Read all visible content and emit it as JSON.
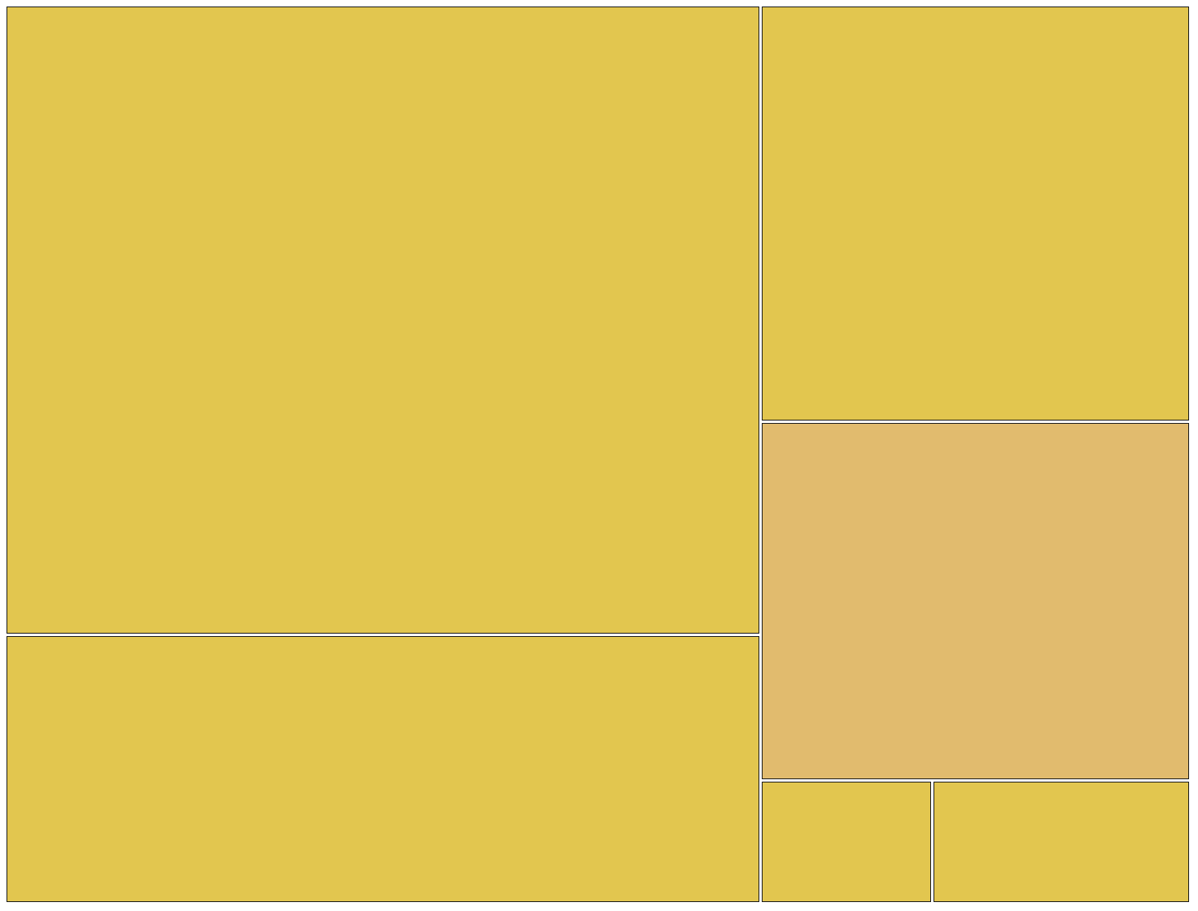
{
  "chart_data": {
    "type": "treemap",
    "title": "",
    "nodes": [
      {
        "value": 53.9,
        "color": "#E2C64F"
      },
      {
        "value": 23.0,
        "color": "#E2C64F"
      },
      {
        "value": 20.3,
        "color": "#E2C64F"
      },
      {
        "value": 17.5,
        "color": "#E1BB6E"
      },
      {
        "value": 2.4,
        "color": "#E2C64F"
      },
      {
        "value": 3.6,
        "color": "#E2C64F"
      }
    ]
  }
}
